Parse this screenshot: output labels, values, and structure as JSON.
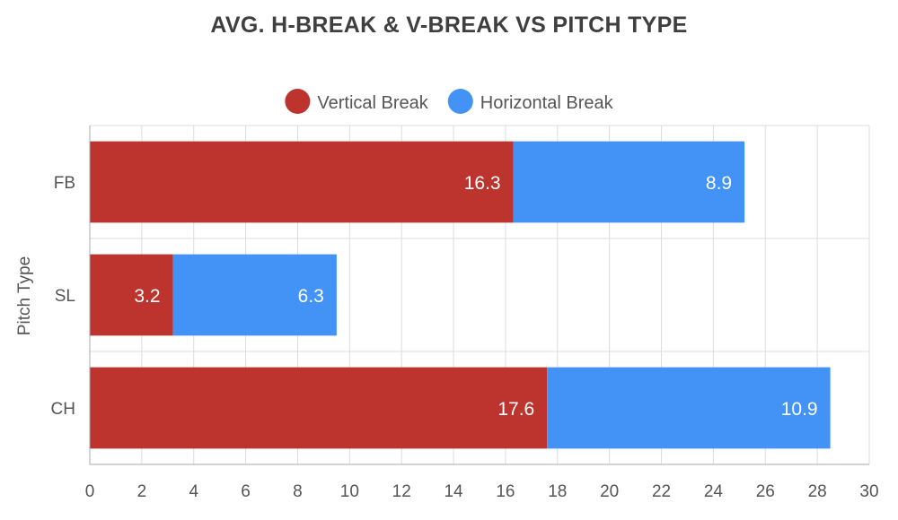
{
  "chart_data": {
    "type": "bar",
    "orientation": "horizontal",
    "stacked": true,
    "title": "AVG. H-BREAK & V-BREAK VS PITCH TYPE",
    "xlabel": "",
    "ylabel": "Pitch Type",
    "xlim": [
      0,
      30
    ],
    "xticks": [
      0,
      2,
      4,
      6,
      8,
      10,
      12,
      14,
      16,
      18,
      20,
      22,
      24,
      26,
      28,
      30
    ],
    "categories": [
      "FB",
      "SL",
      "CH"
    ],
    "series": [
      {
        "name": "Vertical Break",
        "color": "#bc342d",
        "values": [
          16.3,
          3.2,
          17.6
        ],
        "labels": [
          "16.3",
          "3.2",
          "17.6"
        ]
      },
      {
        "name": "Horizontal Break",
        "color": "#4393f7",
        "values": [
          8.9,
          6.3,
          10.9
        ],
        "labels": [
          "8.9",
          "6.3",
          "10.9"
        ]
      }
    ],
    "legend_position": "top",
    "grid": true
  }
}
